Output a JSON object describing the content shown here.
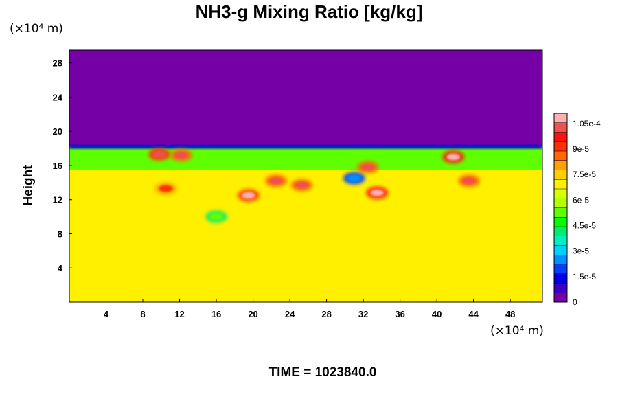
{
  "chart_data": {
    "type": "heatmap",
    "title": "NH3-g Mixing Ratio [kg/kg]",
    "ylabel": "Height",
    "xlabel": "",
    "x_unit": "(×10⁴ m)",
    "y_unit": "(×10⁴ m)",
    "footer": "TIME = 1023840.0",
    "xlim": [
      0,
      51.5
    ],
    "ylim": [
      0,
      29.5
    ],
    "x_ticks": [
      "4",
      "8",
      "12",
      "16",
      "20",
      "24",
      "28",
      "32",
      "36",
      "40",
      "44",
      "48"
    ],
    "y_ticks": [
      "4",
      "8",
      "12",
      "16",
      "20",
      "24",
      "28"
    ],
    "colorbar": {
      "min": 0,
      "max": 0.000111,
      "labels": [
        "0",
        "1.5e-5",
        "3e-5",
        "4.5e-5",
        "6e-5",
        "7.5e-5",
        "9e-5",
        "1.05e-4"
      ],
      "label_values": [
        0,
        1.5e-05,
        3e-05,
        4.5e-05,
        6e-05,
        7.5e-05,
        9e-05,
        0.000105
      ],
      "colors": [
        "#7400a6",
        "#3a00c4",
        "#0000e8",
        "#0040ff",
        "#0090ff",
        "#00d0ff",
        "#00f0c0",
        "#00ee70",
        "#00ff00",
        "#60ff00",
        "#b4ff00",
        "#d8ff00",
        "#fff000",
        "#ffd000",
        "#ffa000",
        "#ff6800",
        "#ff3000",
        "#ff1010",
        "#f05050",
        "#ffb0b0"
      ]
    },
    "background_regions": [
      {
        "y_range": [
          0,
          15.5
        ],
        "value": 7e-05
      },
      {
        "y_range": [
          15.5,
          18.3
        ],
        "value": 5e-05
      },
      {
        "y_range": [
          18.3,
          29.5
        ],
        "value": 0
      }
    ],
    "features": [
      {
        "x": 9.8,
        "y": 17.3,
        "value": 0.000105
      },
      {
        "x": 12.2,
        "y": 17.2,
        "value": 0.0001
      },
      {
        "x": 10.5,
        "y": 13.3,
        "value": 9.2e-05
      },
      {
        "x": 19.5,
        "y": 12.5,
        "value": 0.00011
      },
      {
        "x": 22.5,
        "y": 14.2,
        "value": 0.0001
      },
      {
        "x": 25.3,
        "y": 13.7,
        "value": 0.0001
      },
      {
        "x": 33.5,
        "y": 12.8,
        "value": 0.000111
      },
      {
        "x": 32.5,
        "y": 15.8,
        "value": 0.0001
      },
      {
        "x": 41.8,
        "y": 17.0,
        "value": 0.000111
      },
      {
        "x": 43.5,
        "y": 14.2,
        "value": 0.0001
      },
      {
        "x": 31.0,
        "y": 14.5,
        "value": 2.5e-05
      },
      {
        "x": 16.0,
        "y": 10.0,
        "value": 5e-05
      }
    ]
  }
}
